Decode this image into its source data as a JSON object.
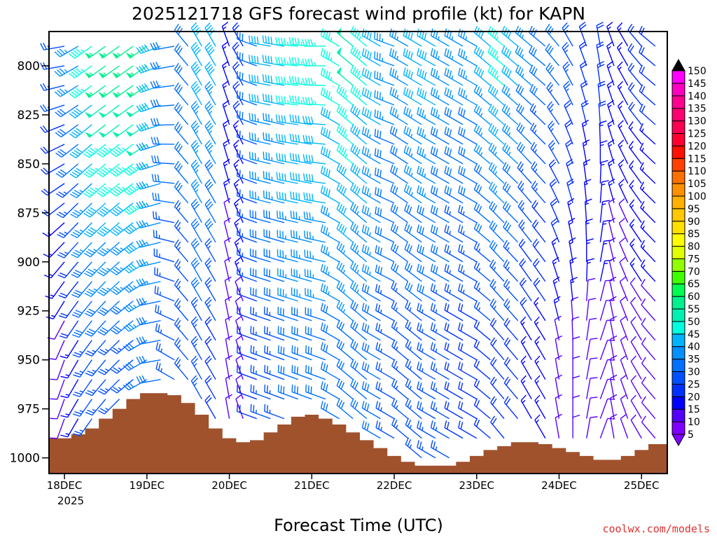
{
  "chart_data": {
    "type": "wind-barb-profile",
    "title": "2025121718 GFS forecast wind profile (kt) for KAPN",
    "xlabel": "Forecast Time (UTC)",
    "credit": "coolwx.com/models",
    "x_unit": "hours since 18DEC 00Z",
    "xlim": [
      -4.5,
      175.5
    ],
    "ylim": [
      782.5,
      1008
    ],
    "y_inverted": true,
    "yticks": [
      800,
      825,
      850,
      875,
      900,
      925,
      950,
      975,
      1000
    ],
    "ytick_labels": [
      "800",
      "825",
      "850",
      "875",
      "900",
      "925",
      "950",
      "975",
      "1000"
    ],
    "xticks": [
      0,
      24,
      48,
      72,
      96,
      120,
      144,
      168
    ],
    "xtick_labels": [
      "18DEC",
      "19DEC",
      "20DEC",
      "21DEC",
      "22DEC",
      "23DEC",
      "24DEC",
      "25DEC"
    ],
    "xtick_sublabel": "2025",
    "barb_levels_hpa": [
      790,
      800,
      810,
      820,
      830,
      840,
      850,
      860,
      870,
      880,
      890,
      900,
      910,
      920,
      930,
      940,
      950,
      960,
      970,
      980,
      990,
      1000
    ],
    "times_h": [
      0,
      4,
      8,
      12,
      16,
      20,
      24,
      28,
      32,
      36,
      40,
      44,
      48,
      52,
      56,
      60,
      64,
      68,
      72,
      76,
      80,
      84,
      88,
      92,
      96,
      100,
      104,
      108,
      112,
      116,
      120,
      124,
      128,
      132,
      136,
      140,
      144,
      148,
      152,
      156,
      160,
      164,
      168,
      172
    ],
    "speed_upper_kt": [
      25,
      35,
      45,
      55,
      55,
      55,
      55,
      40,
      30,
      30,
      40,
      40,
      15,
      20,
      30,
      40,
      40,
      45,
      45,
      45,
      45,
      50,
      45,
      40,
      35,
      35,
      40,
      40,
      35,
      35,
      35,
      40,
      45,
      40,
      35,
      30,
      30,
      25,
      20,
      20,
      15,
      15,
      20,
      20
    ],
    "speed_lower_kt": [
      10,
      15,
      25,
      25,
      25,
      25,
      30,
      30,
      25,
      25,
      25,
      20,
      10,
      10,
      20,
      25,
      25,
      30,
      30,
      30,
      30,
      30,
      30,
      30,
      25,
      25,
      25,
      25,
      25,
      20,
      20,
      20,
      20,
      20,
      15,
      15,
      10,
      10,
      10,
      10,
      10,
      10,
      10,
      10
    ],
    "dir_upper_deg": [
      260,
      240,
      235,
      235,
      235,
      235,
      235,
      250,
      260,
      320,
      330,
      330,
      340,
      330,
      290,
      280,
      280,
      275,
      275,
      270,
      300,
      310,
      310,
      300,
      290,
      300,
      300,
      300,
      300,
      300,
      300,
      310,
      310,
      310,
      310,
      310,
      320,
      330,
      340,
      350,
      340,
      330,
      320,
      310
    ],
    "dir_lower_deg": [
      200,
      210,
      215,
      220,
      225,
      230,
      240,
      260,
      300,
      320,
      330,
      330,
      350,
      340,
      290,
      290,
      290,
      290,
      290,
      290,
      300,
      310,
      310,
      300,
      300,
      310,
      310,
      300,
      300,
      300,
      300,
      310,
      320,
      320,
      330,
      330,
      350,
      360,
      10,
      20,
      350,
      340,
      330,
      320
    ],
    "surface_pressure_hpa": [
      990,
      988,
      985,
      980,
      975,
      970,
      967,
      967,
      968,
      972,
      978,
      985,
      990,
      992,
      991,
      987,
      983,
      979,
      978,
      980,
      983,
      987,
      991,
      995,
      999,
      1002,
      1004,
      1004,
      1004,
      1002,
      999,
      996,
      994,
      992,
      992,
      993,
      995,
      997,
      999,
      1001,
      1001,
      999,
      996,
      993
    ],
    "terrain_color": "#a0522d",
    "colorbar": {
      "labels": [
        "150",
        "145",
        "140",
        "135",
        "130",
        "125",
        "120",
        "115",
        "110",
        "105",
        "100",
        "95",
        "90",
        "85",
        "80",
        "75",
        "70",
        "65",
        "60",
        "55",
        "50",
        "45",
        "40",
        "35",
        "30",
        "25",
        "20",
        "15",
        "10",
        "5"
      ],
      "bounds": [
        5,
        10,
        15,
        20,
        25,
        30,
        35,
        40,
        45,
        50,
        55,
        60,
        65,
        70,
        75,
        80,
        85,
        90,
        95,
        100,
        105,
        110,
        115,
        120,
        125,
        130,
        135,
        140,
        145,
        150
      ],
      "colors": [
        "#7f00ff",
        "#5500ff",
        "#0000ff",
        "#0030ff",
        "#0050ff",
        "#0070ff",
        "#0090ff",
        "#00b4ff",
        "#00ffe0",
        "#00f0b0",
        "#00f090",
        "#00ff50",
        "#40ff00",
        "#90ff00",
        "#e0ff00",
        "#ffff00",
        "#ffe000",
        "#ffc800",
        "#ffb000",
        "#ff9000",
        "#ff7000",
        "#ff4000",
        "#ff1000",
        "#ff0030",
        "#ff0050",
        "#ff0070",
        "#ff0090",
        "#ff00c0",
        "#ff00ff"
      ],
      "over_color": "#000000",
      "under_color": "#7f00ff"
    }
  }
}
